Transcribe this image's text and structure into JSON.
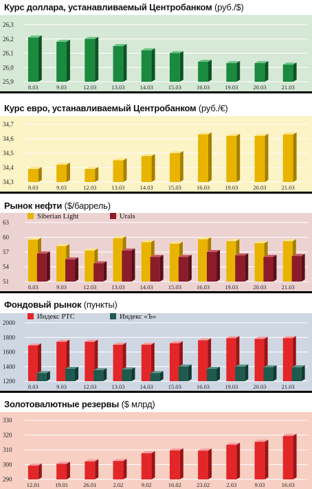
{
  "colors": {
    "usd": {
      "bg": "#d6e8d6",
      "front": "#1a8a3e",
      "light": "#6cc487",
      "dark": "#0c5424"
    },
    "eur": {
      "bg": "#fcf3c6",
      "front": "#e8b400",
      "light": "#fde58e",
      "dark": "#a67f00"
    },
    "oil": {
      "bg": "#ecd3d2",
      "s1_front": "#e8b400",
      "s1_light": "#fde58e",
      "s1_dark": "#a67f00",
      "s2_front": "#8c1c2a",
      "s2_light": "#c45a66",
      "s2_dark": "#5a0f18"
    },
    "stock": {
      "bg": "#cfd7e3",
      "s1_front": "#e32628",
      "s1_light": "#f3a0a0",
      "s1_dark": "#9a1416",
      "s2_front": "#1e5a4e",
      "s2_light": "#5e9588",
      "s2_dark": "#0f3a31"
    },
    "reserves": {
      "bg": "#f8cfc3",
      "front": "#e32628",
      "light": "#f3a0a0",
      "dark": "#9a1416"
    }
  },
  "panels": [
    {
      "title": "Курс доллара, устанавливаемый Центробанком",
      "unit": "(руб./$)",
      "chart_data": {
        "type": "bar",
        "categories": [
          "8.03",
          "9.03",
          "12.03",
          "13.03",
          "14.03",
          "15.03",
          "16.03",
          "19.03",
          "20.03",
          "21.03"
        ],
        "values": [
          26.21,
          26.18,
          26.2,
          26.15,
          26.12,
          26.1,
          26.04,
          26.03,
          26.03,
          26.02
        ],
        "yticks": [
          "26,3",
          "26,2",
          "26,1",
          "26,0",
          "25,9"
        ],
        "ylim": [
          25.9,
          26.3
        ]
      }
    },
    {
      "title": "Курс евро, устанавливаемый Центробанком",
      "unit": "(руб./€)",
      "chart_data": {
        "type": "bar",
        "categories": [
          "8.03",
          "9.03",
          "12.03",
          "13.03",
          "14.03",
          "15.03",
          "16.03",
          "19.03",
          "20.03",
          "21.03"
        ],
        "values": [
          34.39,
          34.42,
          34.39,
          34.45,
          34.48,
          34.5,
          34.63,
          34.62,
          34.62,
          34.63
        ],
        "yticks": [
          "34,7",
          "34,6",
          "34,5",
          "34,4",
          "34,3"
        ],
        "ylim": [
          34.3,
          34.7
        ]
      }
    },
    {
      "title": "Рынок нефти",
      "unit": "($/баррель)",
      "chart_data": {
        "type": "bar",
        "categories": [
          "8.03",
          "9.03",
          "12.03",
          "13.03",
          "14.03",
          "15.03",
          "16.03",
          "19.03",
          "20.03",
          "21.03"
        ],
        "series": [
          {
            "name": "Siberian Light",
            "values": [
              59.5,
              58.2,
              57.3,
              59.8,
              59.0,
              58.7,
              59.6,
              59.2,
              58.8,
              59.2
            ]
          },
          {
            "name": "Urals",
            "values": [
              56.7,
              55.5,
              54.7,
              57.3,
              56.0,
              56.0,
              57.0,
              56.3,
              56.0,
              56.2
            ]
          }
        ],
        "yticks": [
          "63",
          "60",
          "57",
          "54",
          "51"
        ],
        "ylim": [
          51,
          63
        ]
      }
    },
    {
      "title": "Фондовый рынок",
      "unit": "(пункты)",
      "chart_data": {
        "type": "bar",
        "categories": [
          "8.03",
          "9.03",
          "12.03",
          "13.03",
          "14.03",
          "15.03",
          "16.03",
          "19.03",
          "20.03",
          "21.03"
        ],
        "series": [
          {
            "name": "Индекс РТС",
            "values": [
              1690,
              1740,
              1740,
              1700,
              1700,
              1720,
              1760,
              1790,
              1780,
              1790
            ]
          },
          {
            "name": "Индекс «Ъ»",
            "values": [
              1310,
              1370,
              1350,
              1360,
              1310,
              1400,
              1370,
              1400,
              1390,
              1390
            ]
          }
        ],
        "yticks": [
          "2000",
          "1800",
          "1600",
          "1400",
          "1200"
        ],
        "ylim": [
          1200,
          2000
        ]
      }
    },
    {
      "title": "Золотовалютные резервы",
      "unit": "($ млрд)",
      "chart_data": {
        "type": "bar",
        "categories": [
          "12.01",
          "19.01",
          "26.01",
          "2.02",
          "9.02",
          "16.02",
          "23.02",
          "2.03",
          "9.03",
          "16.03"
        ],
        "values": [
          298.3,
          299.6,
          301.4,
          301.7,
          307.5,
          309.6,
          309.4,
          313.8,
          316.0,
          320.4
        ],
        "yticks": [
          "330",
          "320",
          "310",
          "300",
          "290"
        ],
        "ylim": [
          288,
          332
        ]
      }
    }
  ]
}
